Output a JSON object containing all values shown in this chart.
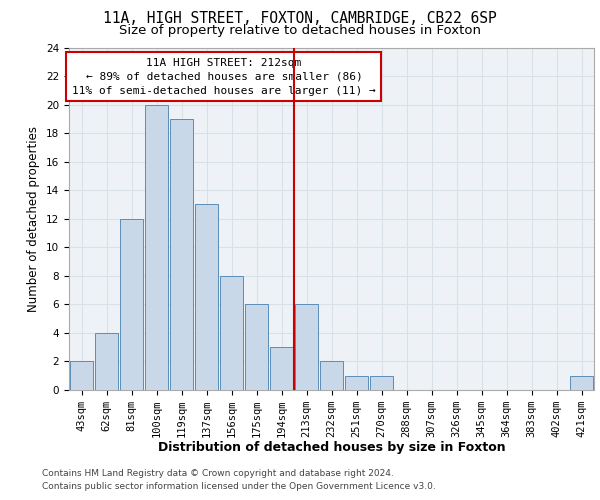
{
  "title1": "11A, HIGH STREET, FOXTON, CAMBRIDGE, CB22 6SP",
  "title2": "Size of property relative to detached houses in Foxton",
  "xlabel": "Distribution of detached houses by size in Foxton",
  "ylabel": "Number of detached properties",
  "categories": [
    "43sqm",
    "62sqm",
    "81sqm",
    "100sqm",
    "119sqm",
    "137sqm",
    "156sqm",
    "175sqm",
    "194sqm",
    "213sqm",
    "232sqm",
    "251sqm",
    "270sqm",
    "288sqm",
    "307sqm",
    "326sqm",
    "345sqm",
    "364sqm",
    "383sqm",
    "402sqm",
    "421sqm"
  ],
  "values": [
    2,
    4,
    12,
    20,
    19,
    13,
    8,
    6,
    3,
    6,
    2,
    1,
    1,
    0,
    0,
    0,
    0,
    0,
    0,
    0,
    1
  ],
  "bar_color": "#c8d8e8",
  "bar_edge_color": "#5b8db8",
  "redline_color": "#cc0000",
  "annotation_text": "11A HIGH STREET: 212sqm\n← 89% of detached houses are smaller (86)\n11% of semi-detached houses are larger (11) →",
  "annotation_box_color": "#ffffff",
  "annotation_box_edge": "#cc0000",
  "ylim": [
    0,
    24
  ],
  "yticks": [
    0,
    2,
    4,
    6,
    8,
    10,
    12,
    14,
    16,
    18,
    20,
    22,
    24
  ],
  "grid_color": "#d8e0e8",
  "bg_color": "#eef2f6",
  "footnote1": "Contains HM Land Registry data © Crown copyright and database right 2024.",
  "footnote2": "Contains public sector information licensed under the Open Government Licence v3.0.",
  "title_fontsize": 10.5,
  "subtitle_fontsize": 9.5,
  "xlabel_fontsize": 9,
  "ylabel_fontsize": 8.5,
  "tick_fontsize": 7.5,
  "annotation_fontsize": 8,
  "footnote_fontsize": 6.5
}
